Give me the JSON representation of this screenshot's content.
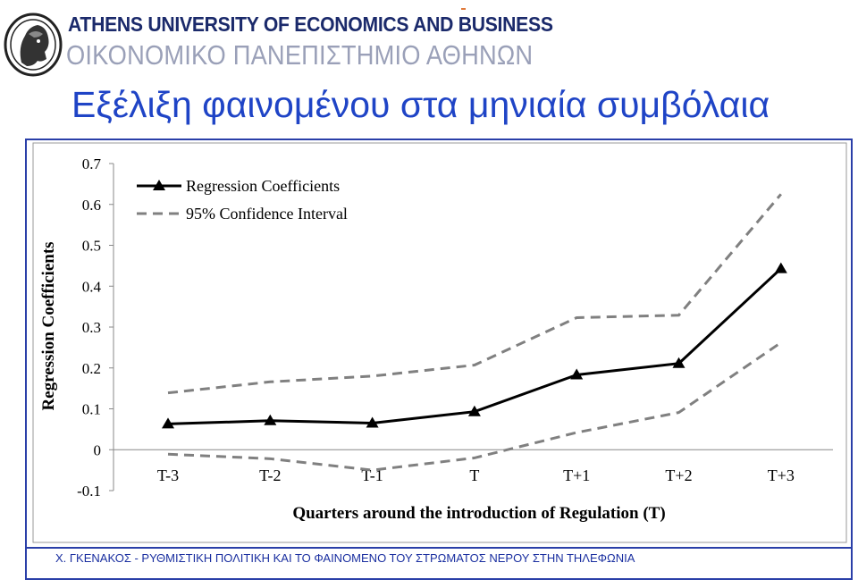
{
  "header": {
    "university_en": "ATHENS UNIVERSITY OF ECONOMICS AND BUSINESS",
    "university_gr": "ΟΙΚΟΝΟΜΙΚΟ ΠΑΝΕΠΙΣΤΗΜΙΟ ΑΘΗΝΩΝ",
    "logo_icon": "athena-head-logo-icon"
  },
  "slide": {
    "title": "Εξέλιξη φαινομένου στα μηνιαία συμβόλαια"
  },
  "footer": {
    "text": "Χ. ΓΚΕΝΑΚΟΣ - ΡΥΘΜΙΣΤΙΚΗ ΠΟΛΙΤΙΚΗ ΚΑΙ ΤΟ ΦΑΙΝΟΜΕΝΟ ΤΟΥ ΣΤΡΩΜΑΤΟΣ ΝΕΡΟΥ ΣΤΗΝ ΤΗΛΕΦΩΝΙΑ"
  },
  "colors": {
    "title": "#1f44c6",
    "frame": "#2a3fa8",
    "regression_line": "#000000",
    "confidence_line": "#808080"
  },
  "chart_data": {
    "type": "line",
    "title": "",
    "xlabel": "Quarters around the introduction of Regulation (T)",
    "ylabel": "Regression Coefficients",
    "categories": [
      "T-3",
      "T-2",
      "T-1",
      "T",
      "T+1",
      "T+2",
      "T+3"
    ],
    "ylim": [
      -0.1,
      0.7
    ],
    "yticks": [
      "-0.1",
      "0",
      "0.1",
      "0.2",
      "0.3",
      "0.4",
      "0.5",
      "0.6",
      "0.7"
    ],
    "grid": false,
    "legend_position": "top-left",
    "series": [
      {
        "name": "Regression Coefficients",
        "style": "solid-triangle-markers",
        "values": [
          0.063,
          0.071,
          0.065,
          0.093,
          0.183,
          0.211,
          0.443
        ]
      },
      {
        "name": "95% Confidence Interval",
        "style": "dashed",
        "values": [
          0.139,
          0.166,
          0.18,
          0.207,
          0.323,
          0.329,
          0.625
        ]
      },
      {
        "name": "95% Confidence Interval",
        "style": "dashed",
        "values": [
          -0.011,
          -0.022,
          -0.05,
          -0.02,
          0.042,
          0.091,
          0.262
        ]
      }
    ]
  }
}
